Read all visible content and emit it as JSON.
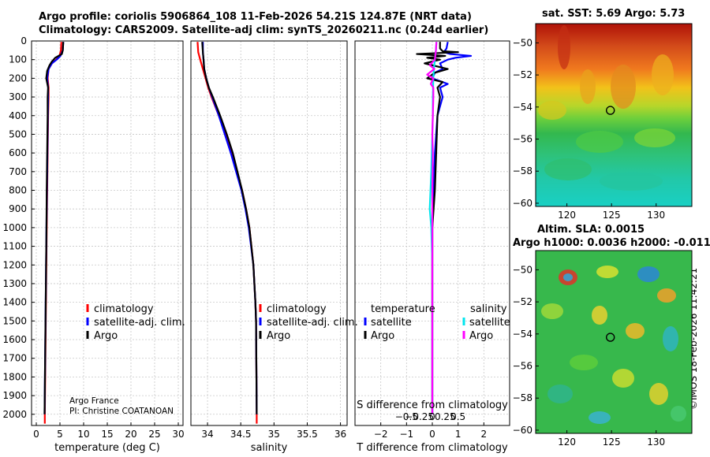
{
  "title_line1": "Argo profile: coriolis 5906864_108 11-Feb-2026 54.21S 124.87E (NRT data)",
  "title_line2": "Climatology: CARS2009. Satellite-adj clim: synTS_20260211.nc (0.24d earlier)",
  "credit": "©IMOS 18-Feb-2026 11:42:21",
  "colors": {
    "climatology": "#ff0000",
    "satellite_adj": "#0000ff",
    "argo": "#000000",
    "sat_t": "#0000ff",
    "sat_s": "#00e5ee",
    "argo_s": "#ff00ff"
  },
  "chart_data": [
    {
      "id": "temperature",
      "type": "line",
      "xlabel": "temperature (deg C)",
      "ylabel": "",
      "xlim": [
        -1,
        31
      ],
      "ylim": [
        2060,
        0
      ],
      "xticks": [
        0,
        5,
        10,
        15,
        20,
        25,
        30
      ],
      "yticks": [
        0,
        100,
        200,
        300,
        400,
        500,
        600,
        700,
        800,
        900,
        1000,
        1100,
        1200,
        1300,
        1400,
        1500,
        1600,
        1700,
        1800,
        1900,
        2000
      ],
      "grid": true,
      "legend": {
        "placement": "lower-right",
        "entries": [
          "climatology",
          "satellite-adj. clim.",
          "Argo"
        ]
      },
      "annotation": [
        "Argo France",
        "PI: Christine COATANOAN"
      ],
      "series": [
        {
          "name": "climatology",
          "color": "#ff0000",
          "depth": [
            5,
            50,
            80,
            100,
            120,
            150,
            200,
            250,
            300,
            400,
            600,
            800,
            1000,
            1500,
            2000,
            2050
          ],
          "values": [
            5.3,
            5.2,
            4.9,
            4.2,
            3.3,
            2.6,
            2.4,
            2.6,
            2.6,
            2.5,
            2.4,
            2.3,
            2.2,
            2.0,
            1.8,
            1.8
          ]
        },
        {
          "name": "satellite-adj. clim.",
          "color": "#0000ff",
          "depth": [
            5,
            50,
            80,
            100,
            120,
            150,
            200,
            250,
            300,
            400,
            600,
            800,
            1000,
            1500,
            2000
          ],
          "values": [
            5.7,
            5.6,
            5.1,
            4.3,
            3.3,
            2.6,
            2.3,
            2.5,
            2.5,
            2.45,
            2.35,
            2.25,
            2.15,
            1.95,
            1.75
          ]
        },
        {
          "name": "Argo",
          "color": "#000000",
          "depth": [
            5,
            50,
            70,
            90,
            110,
            130,
            160,
            200,
            250,
            300,
            400,
            600,
            800,
            1000,
            1500,
            2000
          ],
          "values": [
            5.7,
            5.6,
            5.4,
            4.0,
            3.3,
            2.8,
            2.3,
            2.1,
            2.5,
            2.4,
            2.4,
            2.3,
            2.2,
            2.15,
            1.95,
            1.75
          ]
        }
      ]
    },
    {
      "id": "salinity",
      "type": "line",
      "xlabel": "salinity",
      "ylabel": "",
      "xlim": [
        33.75,
        36.1
      ],
      "ylim": [
        2060,
        0
      ],
      "xticks": [
        34,
        34.5,
        35,
        35.5,
        36
      ],
      "grid": true,
      "legend": {
        "placement": "lower-right",
        "entries": [
          "climatology",
          "satellite-adj. clim.",
          "Argo"
        ]
      },
      "series": [
        {
          "name": "climatology",
          "color": "#ff0000",
          "depth": [
            5,
            60,
            100,
            150,
            200,
            250,
            300,
            400,
            500,
            600,
            700,
            800,
            900,
            1000,
            1200,
            1400,
            1500,
            2000,
            2050
          ],
          "values": [
            33.85,
            33.86,
            33.89,
            33.93,
            33.97,
            34.01,
            34.06,
            34.17,
            34.27,
            34.36,
            34.44,
            34.52,
            34.58,
            34.63,
            34.69,
            34.72,
            34.73,
            34.74,
            34.74
          ]
        },
        {
          "name": "satellite-adj. clim.",
          "color": "#0000ff",
          "depth": [
            5,
            60,
            100,
            150,
            200,
            250,
            300,
            400,
            500,
            600,
            700,
            800,
            900,
            1000,
            1200,
            1400,
            1500,
            2000
          ],
          "values": [
            33.93,
            33.93,
            33.94,
            33.95,
            33.98,
            34.02,
            34.07,
            34.17,
            34.26,
            34.35,
            34.43,
            34.51,
            34.57,
            34.62,
            34.69,
            34.72,
            34.73,
            34.74
          ]
        },
        {
          "name": "Argo",
          "color": "#000000",
          "depth": [
            5,
            60,
            100,
            150,
            200,
            250,
            300,
            400,
            500,
            600,
            700,
            800,
            900,
            1000,
            1200,
            1400,
            1500,
            2000
          ],
          "values": [
            33.92,
            33.93,
            33.94,
            33.95,
            33.98,
            34.02,
            34.08,
            34.19,
            34.29,
            34.38,
            34.45,
            34.52,
            34.58,
            34.63,
            34.69,
            34.72,
            34.73,
            34.74
          ]
        }
      ]
    },
    {
      "id": "difference",
      "type": "line",
      "xlabel": "T difference from climatology",
      "xlabel_top": "S difference from climatology",
      "xlim": [
        -3,
        3
      ],
      "ylim": [
        2060,
        0
      ],
      "xticks": [
        -2,
        -1,
        0,
        1,
        2
      ],
      "s_ticks": [
        -0.5,
        -0.25,
        0,
        0.25,
        0.5
      ],
      "grid": true,
      "legend": {
        "placement": "lower-left",
        "groups": [
          {
            "title": "temperature",
            "entries": [
              "satellite",
              "Argo"
            ]
          },
          {
            "title": "salinity",
            "entries": [
              "satellite",
              "Argo"
            ]
          }
        ]
      },
      "series": [
        {
          "name": "temperature satellite",
          "color": "#0000ff",
          "depth": [
            5,
            40,
            60,
            70,
            80,
            90,
            100,
            120,
            150,
            170,
            200,
            230,
            250,
            300,
            400,
            600,
            800,
            1000,
            1500,
            2000
          ],
          "values": [
            0.6,
            0.55,
            0.45,
            0.7,
            1.5,
            0.9,
            0.6,
            0.3,
            0.4,
            0.1,
            0.0,
            0.6,
            0.3,
            0.4,
            0.2,
            0.1,
            0.05,
            0.0,
            0.0,
            0.0
          ]
        },
        {
          "name": "temperature Argo",
          "color": "#000000",
          "depth": [
            5,
            40,
            55,
            60,
            70,
            80,
            90,
            100,
            120,
            150,
            170,
            200,
            220,
            250,
            300,
            400,
            600,
            800,
            1000,
            1500,
            2000
          ],
          "values": [
            0.3,
            0.3,
            0.4,
            1.0,
            -0.6,
            0.5,
            -0.2,
            0.3,
            -0.3,
            0.6,
            0.1,
            -0.2,
            0.4,
            0.2,
            0.3,
            0.2,
            0.15,
            0.1,
            0.0,
            0.0,
            0.0
          ]
        },
        {
          "name": "salinity satellite",
          "color": "#00e5ee",
          "depth": [
            5,
            50,
            100,
            150,
            200,
            300,
            400,
            500,
            700,
            900,
            1000,
            1200,
            1500,
            2000
          ],
          "values": [
            0.08,
            0.07,
            0.05,
            0.03,
            0.02,
            0.01,
            0.01,
            0.0,
            -0.02,
            -0.05,
            -0.02,
            0.0,
            0.0,
            0.0
          ]
        },
        {
          "name": "salinity Argo",
          "color": "#ff00ff",
          "depth": [
            5,
            50,
            100,
            130,
            150,
            180,
            200,
            230,
            250,
            300,
            400,
            500,
            600,
            800,
            1000,
            1500,
            2000
          ],
          "values": [
            0.08,
            0.07,
            0.05,
            -0.05,
            0.04,
            -0.1,
            0.02,
            -0.03,
            0.02,
            0.02,
            0.01,
            0.0,
            0.01,
            0.0,
            0.0,
            0.0,
            0.0
          ]
        }
      ]
    },
    {
      "id": "sst_map",
      "type": "heatmap",
      "title": "sat. SST: 5.69 Argo: 5.73",
      "xticks": [
        120,
        125,
        130
      ],
      "yticks": [
        -50,
        -52,
        -54,
        -56,
        -58,
        -60
      ],
      "xlim": [
        116.5,
        134
      ],
      "ylim": [
        -60.2,
        -48.8
      ],
      "marker": {
        "lon": 124.87,
        "lat": -54.21,
        "label": "Argo position"
      }
    },
    {
      "id": "sla_map",
      "type": "heatmap",
      "title": "Altim. SLA: 0.0015",
      "subtitle": "Argo h1000: 0.0036 h2000: -0.011",
      "xticks": [
        120,
        125,
        130
      ],
      "yticks": [
        -50,
        -52,
        -54,
        -56,
        -58,
        -60
      ],
      "xlim": [
        116.5,
        134
      ],
      "ylim": [
        -60.2,
        -48.8
      ],
      "marker": {
        "lon": 124.87,
        "lat": -54.21,
        "label": "Argo position"
      }
    }
  ]
}
